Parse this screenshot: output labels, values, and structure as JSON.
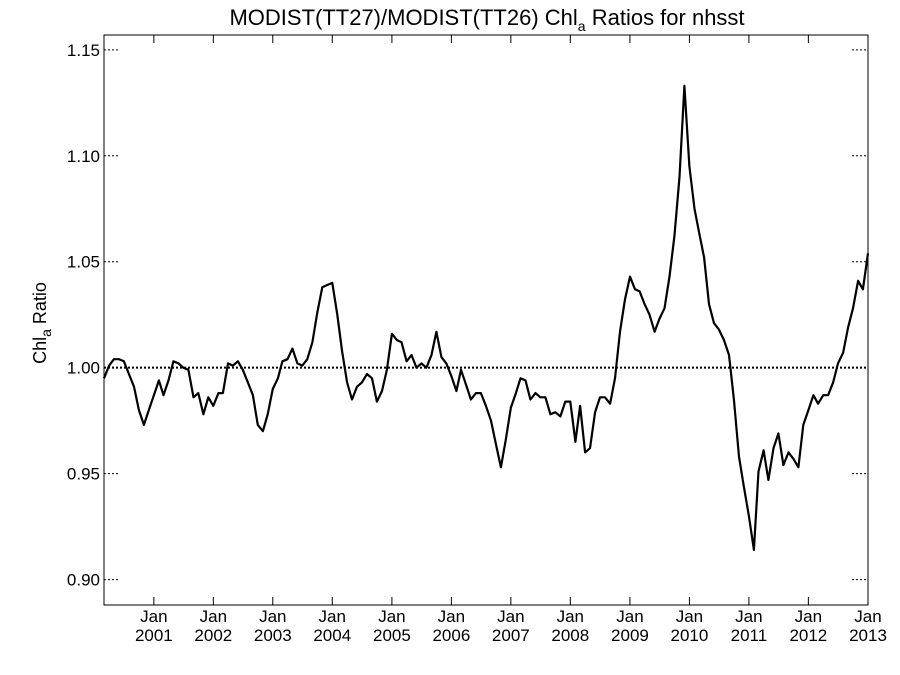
{
  "chart_data": {
    "type": "line",
    "title": {
      "main": "MODIST(TT27)/MODIST(TT26)  Chl",
      "subscript": "a",
      "suffix": " Ratios for nhsst"
    },
    "ylabel": {
      "main": "Chl",
      "subscript": "a",
      "suffix": " Ratio"
    },
    "xlabel": "",
    "xlim": [
      "2000-03-01",
      "2013-01-01"
    ],
    "ylim": [
      0.888,
      1.157
    ],
    "y_ticks": [
      {
        "value": 0.9,
        "label": "0.90"
      },
      {
        "value": 0.95,
        "label": "0.95"
      },
      {
        "value": 1.0,
        "label": "1.00"
      },
      {
        "value": 1.05,
        "label": "1.05"
      },
      {
        "value": 1.1,
        "label": "1.10"
      },
      {
        "value": 1.15,
        "label": "1.15"
      }
    ],
    "x_ticks": [
      {
        "value": "2001-01-01",
        "month": "Jan",
        "year": "2001"
      },
      {
        "value": "2002-01-01",
        "month": "Jan",
        "year": "2002"
      },
      {
        "value": "2003-01-01",
        "month": "Jan",
        "year": "2003"
      },
      {
        "value": "2004-01-01",
        "month": "Jan",
        "year": "2004"
      },
      {
        "value": "2005-01-01",
        "month": "Jan",
        "year": "2005"
      },
      {
        "value": "2006-01-01",
        "month": "Jan",
        "year": "2006"
      },
      {
        "value": "2007-01-01",
        "month": "Jan",
        "year": "2007"
      },
      {
        "value": "2008-01-01",
        "month": "Jan",
        "year": "2008"
      },
      {
        "value": "2009-01-01",
        "month": "Jan",
        "year": "2009"
      },
      {
        "value": "2010-01-01",
        "month": "Jan",
        "year": "2010"
      },
      {
        "value": "2011-01-01",
        "month": "Jan",
        "year": "2011"
      },
      {
        "value": "2012-01-01",
        "month": "Jan",
        "year": "2012"
      },
      {
        "value": "2013-01-01",
        "month": "Jan",
        "year": "2013"
      }
    ],
    "reference_line": {
      "y": 1.0,
      "style": "dotted"
    },
    "grid": false,
    "series": [
      {
        "color": "#000000",
        "points": [
          [
            "2000-03",
            0.995
          ],
          [
            "2000-04",
            1.001
          ],
          [
            "2000-05",
            1.004
          ],
          [
            "2000-06",
            1.004
          ],
          [
            "2000-07",
            1.003
          ],
          [
            "2000-08",
            0.997
          ],
          [
            "2000-09",
            0.991
          ],
          [
            "2000-10",
            0.98
          ],
          [
            "2000-11",
            0.973
          ],
          [
            "2000-12",
            0.98
          ],
          [
            "2001-01",
            0.987
          ],
          [
            "2001-02",
            0.994
          ],
          [
            "2001-03",
            0.987
          ],
          [
            "2001-04",
            0.994
          ],
          [
            "2001-05",
            1.003
          ],
          [
            "2001-06",
            1.002
          ],
          [
            "2001-07",
            1.0
          ],
          [
            "2001-08",
            0.999
          ],
          [
            "2001-09",
            0.986
          ],
          [
            "2001-10",
            0.988
          ],
          [
            "2001-11",
            0.978
          ],
          [
            "2001-12",
            0.986
          ],
          [
            "2002-01",
            0.982
          ],
          [
            "2002-02",
            0.988
          ],
          [
            "2002-03",
            0.988
          ],
          [
            "2002-04",
            1.002
          ],
          [
            "2002-05",
            1.001
          ],
          [
            "2002-06",
            1.003
          ],
          [
            "2002-07",
            0.999
          ],
          [
            "2002-08",
            0.993
          ],
          [
            "2002-09",
            0.987
          ],
          [
            "2002-10",
            0.973
          ],
          [
            "2002-11",
            0.97
          ],
          [
            "2002-12",
            0.978
          ],
          [
            "2003-01",
            0.99
          ],
          [
            "2003-02",
            0.995
          ],
          [
            "2003-03",
            1.003
          ],
          [
            "2003-04",
            1.004
          ],
          [
            "2003-05",
            1.009
          ],
          [
            "2003-06",
            1.002
          ],
          [
            "2003-07",
            1.001
          ],
          [
            "2003-08",
            1.004
          ],
          [
            "2003-09",
            1.012
          ],
          [
            "2003-10",
            1.026
          ],
          [
            "2003-11",
            1.038
          ],
          [
            "2003-12",
            1.039
          ],
          [
            "2004-01",
            1.04
          ],
          [
            "2004-02",
            1.025
          ],
          [
            "2004-03",
            1.008
          ],
          [
            "2004-04",
            0.993
          ],
          [
            "2004-05",
            0.985
          ],
          [
            "2004-06",
            0.991
          ],
          [
            "2004-07",
            0.993
          ],
          [
            "2004-08",
            0.997
          ],
          [
            "2004-09",
            0.995
          ],
          [
            "2004-10",
            0.984
          ],
          [
            "2004-11",
            0.989
          ],
          [
            "2004-12",
            0.999
          ],
          [
            "2005-01",
            1.016
          ],
          [
            "2005-02",
            1.013
          ],
          [
            "2005-03",
            1.012
          ],
          [
            "2005-04",
            1.003
          ],
          [
            "2005-05",
            1.006
          ],
          [
            "2005-06",
            1.0
          ],
          [
            "2005-07",
            1.002
          ],
          [
            "2005-08",
            1.0
          ],
          [
            "2005-09",
            1.006
          ],
          [
            "2005-10",
            1.017
          ],
          [
            "2005-11",
            1.005
          ],
          [
            "2005-12",
            1.002
          ],
          [
            "2006-01",
            0.996
          ],
          [
            "2006-02",
            0.989
          ],
          [
            "2006-03",
            0.999
          ],
          [
            "2006-04",
            0.992
          ],
          [
            "2006-05",
            0.985
          ],
          [
            "2006-06",
            0.988
          ],
          [
            "2006-07",
            0.988
          ],
          [
            "2006-08",
            0.982
          ],
          [
            "2006-09",
            0.975
          ],
          [
            "2006-10",
            0.964
          ],
          [
            "2006-11",
            0.953
          ],
          [
            "2006-12",
            0.966
          ],
          [
            "2007-01",
            0.981
          ],
          [
            "2007-02",
            0.988
          ],
          [
            "2007-03",
            0.995
          ],
          [
            "2007-04",
            0.994
          ],
          [
            "2007-05",
            0.985
          ],
          [
            "2007-06",
            0.988
          ],
          [
            "2007-07",
            0.986
          ],
          [
            "2007-08",
            0.986
          ],
          [
            "2007-09",
            0.978
          ],
          [
            "2007-10",
            0.979
          ],
          [
            "2007-11",
            0.977
          ],
          [
            "2007-12",
            0.984
          ],
          [
            "2008-01",
            0.984
          ],
          [
            "2008-02",
            0.965
          ],
          [
            "2008-03",
            0.982
          ],
          [
            "2008-04",
            0.96
          ],
          [
            "2008-05",
            0.962
          ],
          [
            "2008-06",
            0.979
          ],
          [
            "2008-07",
            0.986
          ],
          [
            "2008-08",
            0.986
          ],
          [
            "2008-09",
            0.983
          ],
          [
            "2008-10",
            0.995
          ],
          [
            "2008-11",
            1.017
          ],
          [
            "2008-12",
            1.032
          ],
          [
            "2009-01",
            1.043
          ],
          [
            "2009-02",
            1.037
          ],
          [
            "2009-03",
            1.036
          ],
          [
            "2009-04",
            1.03
          ],
          [
            "2009-05",
            1.025
          ],
          [
            "2009-06",
            1.017
          ],
          [
            "2009-07",
            1.023
          ],
          [
            "2009-08",
            1.028
          ],
          [
            "2009-09",
            1.043
          ],
          [
            "2009-10",
            1.062
          ],
          [
            "2009-11",
            1.09
          ],
          [
            "2009-12",
            1.133
          ],
          [
            "2010-01",
            1.095
          ],
          [
            "2010-02",
            1.075
          ],
          [
            "2010-03",
            1.064
          ],
          [
            "2010-04",
            1.052
          ],
          [
            "2010-05",
            1.03
          ],
          [
            "2010-06",
            1.021
          ],
          [
            "2010-07",
            1.018
          ],
          [
            "2010-08",
            1.013
          ],
          [
            "2010-09",
            1.006
          ],
          [
            "2010-10",
            0.985
          ],
          [
            "2010-11",
            0.958
          ],
          [
            "2010-12",
            0.944
          ],
          [
            "2011-01",
            0.93
          ],
          [
            "2011-02",
            0.914
          ],
          [
            "2011-03",
            0.951
          ],
          [
            "2011-04",
            0.961
          ],
          [
            "2011-05",
            0.947
          ],
          [
            "2011-06",
            0.962
          ],
          [
            "2011-07",
            0.969
          ],
          [
            "2011-08",
            0.954
          ],
          [
            "2011-09",
            0.96
          ],
          [
            "2011-10",
            0.957
          ],
          [
            "2011-11",
            0.953
          ],
          [
            "2011-12",
            0.973
          ],
          [
            "2012-01",
            0.98
          ],
          [
            "2012-02",
            0.987
          ],
          [
            "2012-03",
            0.983
          ],
          [
            "2012-04",
            0.987
          ],
          [
            "2012-05",
            0.987
          ],
          [
            "2012-06",
            0.993
          ],
          [
            "2012-07",
            1.002
          ],
          [
            "2012-08",
            1.007
          ],
          [
            "2012-09",
            1.019
          ],
          [
            "2012-10",
            1.028
          ],
          [
            "2012-11",
            1.041
          ],
          [
            "2012-12",
            1.037
          ],
          [
            "2013-01",
            1.054
          ]
        ]
      }
    ]
  }
}
